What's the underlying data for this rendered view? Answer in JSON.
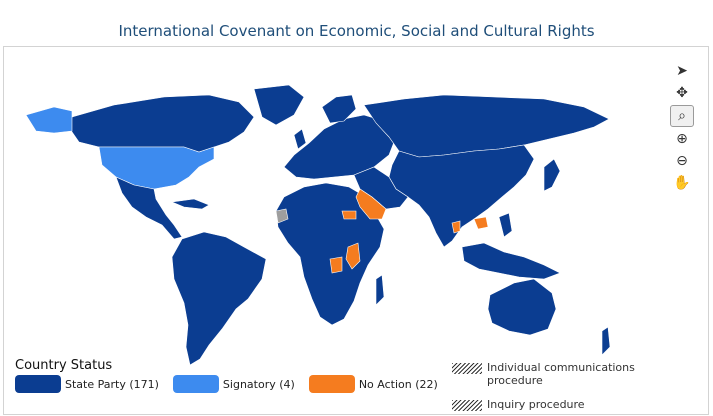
{
  "title": "International Covenant on Economic, Social and Cultural Rights",
  "colors": {
    "state_party": "#0b3d91",
    "signatory": "#3d8bef",
    "no_action": "#f57c1f",
    "no_data": "#9e9e9e",
    "border": "#ffffff"
  },
  "toolbar": {
    "tools": [
      {
        "name": "select-pointer-icon",
        "glyph": "➤"
      },
      {
        "name": "pan-compass-icon",
        "glyph": "✥"
      },
      {
        "name": "zoom-box-icon",
        "glyph": "⌕"
      },
      {
        "name": "zoom-in-icon",
        "glyph": "⊕"
      },
      {
        "name": "zoom-out-icon",
        "glyph": "⊖"
      },
      {
        "name": "hand-pan-icon",
        "glyph": "✋"
      }
    ]
  },
  "legend": {
    "title": "Country Status",
    "items": [
      {
        "label": "State Party (171)",
        "color_key": "state_party"
      },
      {
        "label": "Signatory (4)",
        "color_key": "signatory"
      },
      {
        "label": "No Action (22)",
        "color_key": "no_action"
      }
    ],
    "procedures": [
      {
        "label_line1": "Individual communications",
        "label_line2": "procedure"
      },
      {
        "label_line1": "Inquiry procedure",
        "label_line2": ""
      }
    ]
  }
}
